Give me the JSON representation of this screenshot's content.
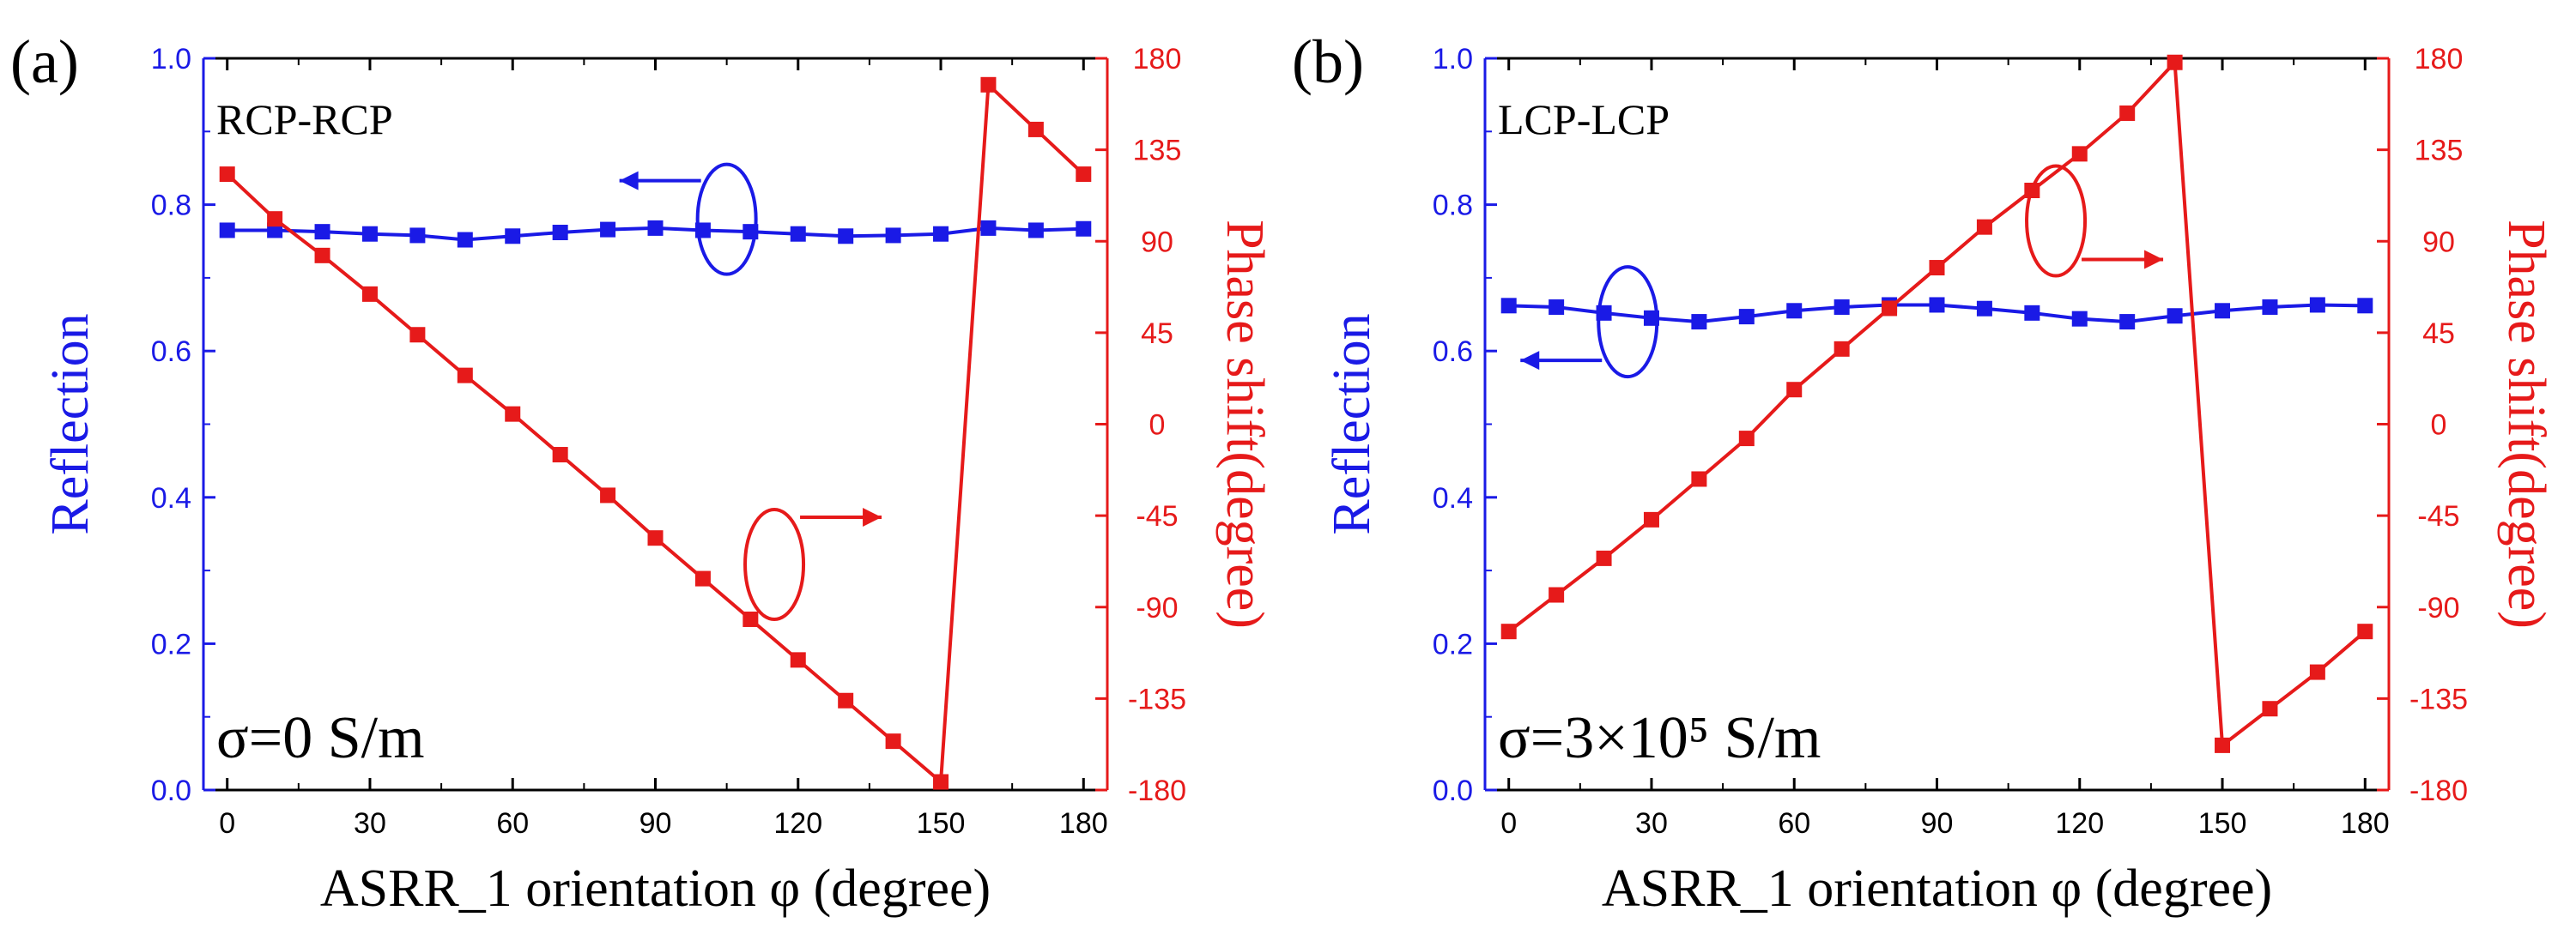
{
  "colors": {
    "reflection": "#1a1ae6",
    "phase": "#e61a1a",
    "axis": "#000000"
  },
  "chart_data": [
    {
      "type": "line",
      "panel_label": "(a)",
      "mode_label": "RCP-RCP",
      "condition": "σ=0 S/m",
      "xlabel": "ASRR_1 orientation φ (degree)",
      "ylabel_left": "Reflection",
      "ylabel_right": "Phase shift(degree)",
      "xlim": [
        -5,
        185
      ],
      "ylim_left": [
        0,
        1
      ],
      "ylim_right": [
        -180,
        180
      ],
      "x_ticks": [
        "0",
        "30",
        "60",
        "90",
        "120",
        "150",
        "180"
      ],
      "y_left_ticks": [
        "0.0",
        "0.2",
        "0.4",
        "0.6",
        "0.8",
        "1.0"
      ],
      "y_right_ticks": [
        "-180",
        "-135",
        "-90",
        "-45",
        "0",
        "45",
        "90",
        "135",
        "180"
      ],
      "x": [
        0,
        10,
        20,
        30,
        40,
        50,
        60,
        70,
        80,
        90,
        100,
        110,
        120,
        130,
        140,
        150,
        160,
        170,
        180
      ],
      "series": [
        {
          "name": "Reflection",
          "axis": "left",
          "values": [
            0.765,
            0.765,
            0.763,
            0.76,
            0.758,
            0.752,
            0.757,
            0.762,
            0.766,
            0.768,
            0.765,
            0.763,
            0.76,
            0.757,
            0.758,
            0.76,
            0.768,
            0.765,
            0.767
          ]
        },
        {
          "name": "Phase shift",
          "axis": "right",
          "values": [
            123,
            101,
            83,
            64,
            44,
            24,
            5,
            -15,
            -35,
            -56,
            -76,
            -96,
            -116,
            -136,
            -156,
            -176,
            167,
            145,
            123
          ]
        }
      ],
      "annotations": [
        {
          "text": "left-arrow",
          "target": "Reflection",
          "x": 105,
          "y_left": 0.78
        },
        {
          "text": "right-arrow",
          "target": "Phase shift",
          "x": 115,
          "y_right": -69
        }
      ]
    },
    {
      "type": "line",
      "panel_label": "(b)",
      "mode_label": "LCP-LCP",
      "condition": "σ=3×10⁵ S/m",
      "xlabel": "ASRR_1 orientation φ (degree)",
      "ylabel_left": "Reflection",
      "ylabel_right": "Phase shift(degree)",
      "xlim": [
        -5,
        185
      ],
      "ylim_left": [
        0,
        1
      ],
      "ylim_right": [
        -180,
        180
      ],
      "x_ticks": [
        "0",
        "30",
        "60",
        "90",
        "120",
        "150",
        "180"
      ],
      "y_left_ticks": [
        "0.0",
        "0.2",
        "0.4",
        "0.6",
        "0.8",
        "1.0"
      ],
      "y_right_ticks": [
        "-180",
        "-135",
        "-90",
        "-45",
        "0",
        "45",
        "90",
        "135",
        "180"
      ],
      "x": [
        0,
        10,
        20,
        30,
        40,
        50,
        60,
        70,
        80,
        90,
        100,
        110,
        120,
        130,
        140,
        150,
        160,
        170,
        180
      ],
      "series": [
        {
          "name": "Reflection",
          "axis": "left",
          "values": [
            0.662,
            0.66,
            0.652,
            0.645,
            0.64,
            0.647,
            0.655,
            0.66,
            0.663,
            0.663,
            0.658,
            0.652,
            0.644,
            0.64,
            0.648,
            0.655,
            0.66,
            0.663,
            0.662
          ]
        },
        {
          "name": "Phase shift",
          "axis": "right",
          "values": [
            -102,
            -84,
            -66,
            -47,
            -27,
            -7,
            17,
            37,
            57,
            77,
            97,
            115,
            133,
            153,
            178,
            -158,
            -140,
            -122,
            -102
          ]
        }
      ],
      "annotations": [
        {
          "text": "left-arrow",
          "target": "Reflection",
          "x": 25,
          "y_left": 0.64
        },
        {
          "text": "right-arrow",
          "target": "Phase shift",
          "x": 115,
          "y_right": 100
        }
      ]
    }
  ]
}
